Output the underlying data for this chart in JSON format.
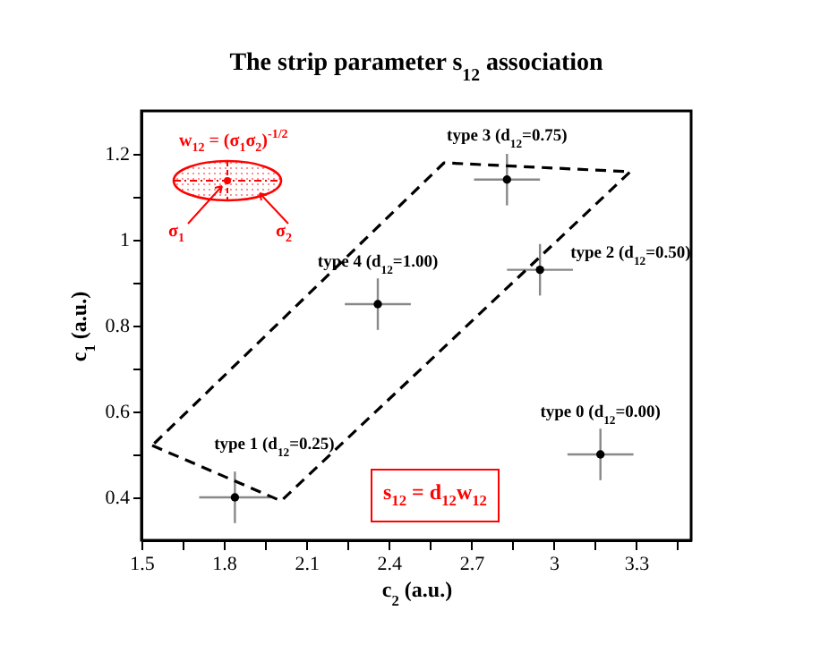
{
  "chart_data": {
    "type": "scatter",
    "title": "The strip parameter s$_{12}$ association",
    "xlabel": "c$_{2}$ (a.u.)",
    "ylabel": "c$_{1}$ (a.u.)",
    "xlim": [
      1.5,
      3.5
    ],
    "xticks": [
      1.5,
      {
        "value": 1.65,
        "label": null
      },
      1.8,
      {
        "value": 1.95,
        "label": null
      },
      2.1,
      {
        "value": 2.25,
        "label": null
      },
      2.4,
      {
        "value": 2.55,
        "label": null
      },
      2.7,
      {
        "value": 2.85,
        "label": null
      },
      3,
      {
        "value": 3.15,
        "label": null
      },
      3.3,
      {
        "value": 3.45,
        "label": null
      }
    ],
    "ylim": [
      0.3,
      1.3
    ],
    "yticks": [
      0.4,
      {
        "value": 0.5,
        "label": null
      },
      0.6,
      {
        "value": 0.7,
        "label": null
      },
      0.8,
      {
        "value": 0.9,
        "label": null
      },
      1,
      {
        "value": 1.1,
        "label": null
      },
      1.2
    ],
    "marker": "circle",
    "grid": false,
    "series": [
      {
        "type": "scatter",
        "color": "#000000",
        "x": [
          1.84,
          2.36,
          2.83,
          2.95,
          3.17
        ],
        "values": [
          0.4,
          0.85,
          1.14,
          0.93,
          0.5
        ],
        "errors": [
          0.06,
          0.06,
          0.06,
          0.06,
          0.06
        ],
        "xerrors": [
          0.13,
          0.12,
          0.12,
          0.12,
          0.12
        ]
      }
    ],
    "annotations": [
      {
        "text": "type 1 (d$_{12}$=0.25)",
        "x": 1.84,
        "y": 0.4
      },
      {
        "text": "type 4 (d$_{12}$=1.00)",
        "x": 2.36,
        "y": 0.85
      },
      {
        "text": "type 3 (d$_{12}$=0.75)",
        "x": 2.83,
        "y": 1.14
      },
      {
        "text": "type 2 (d$_{12}$=0.50)",
        "x": 2.95,
        "y": 0.93
      },
      {
        "text": "type 0 (d$_{12}$=0.00)",
        "x": 3.17,
        "y": 0.5
      },
      "w$_{12}$ = (σ$_{1}$σ$_{2}$)$^{-1/2}$",
      "σ$_{1}$",
      "σ$_{2}$",
      "s$_{12}$ = d$_{12}$w$_{12}$"
    ]
  }
}
